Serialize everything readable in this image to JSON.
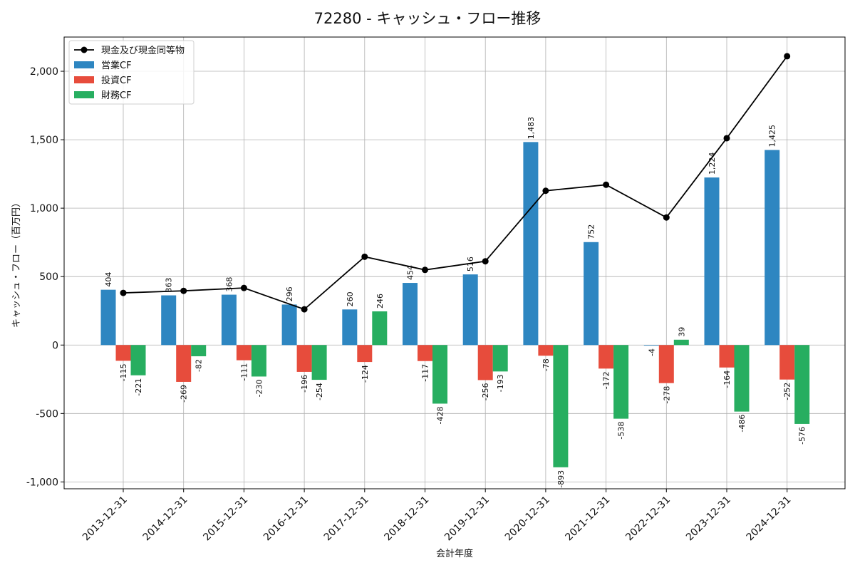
{
  "chart_data": {
    "type": "bar",
    "title": "72280 - キャッシュ・フロー推移",
    "xlabel": "会計年度",
    "ylabel": "キャッシュ・フロー（百万円）",
    "ylim": [
      -1050,
      2250
    ],
    "yticks": [
      -1000,
      -500,
      0,
      500,
      1000,
      1500,
      2000
    ],
    "ytick_labels": [
      "-1,000",
      "-500",
      "0",
      "500",
      "1,000",
      "1,500",
      "2,000"
    ],
    "grid": true,
    "legend_position": "top-left",
    "categories": [
      "2013-12-31",
      "2014-12-31",
      "2015-12-31",
      "2016-12-31",
      "2017-12-31",
      "2018-12-31",
      "2019-12-31",
      "2020-12-31",
      "2021-12-31",
      "2022-12-31",
      "2023-12-31",
      "2024-12-31"
    ],
    "series": [
      {
        "name": "営業CF",
        "kind": "bar",
        "color": "#2e86c1",
        "values": [
          404,
          363,
          368,
          296,
          260,
          454,
          516,
          1483,
          752,
          -4,
          1224,
          1425
        ],
        "labels": [
          "404",
          "363",
          "368",
          "296",
          "260",
          "454",
          "516",
          "1,483",
          "752",
          "-4",
          "1,224",
          "1,425"
        ]
      },
      {
        "name": "投資CF",
        "kind": "bar",
        "color": "#e74c3c",
        "values": [
          -115,
          -269,
          -111,
          -196,
          -124,
          -117,
          -256,
          -78,
          -172,
          -278,
          -164,
          -252
        ],
        "labels": [
          "-115",
          "-269",
          "-111",
          "-196",
          "-124",
          "-117",
          "-256",
          "-78",
          "-172",
          "-278",
          "-164",
          "-252"
        ]
      },
      {
        "name": "財務CF",
        "kind": "bar",
        "color": "#27ae60",
        "values": [
          -221,
          -82,
          -230,
          -254,
          246,
          -428,
          -193,
          -893,
          -538,
          39,
          -486,
          -576
        ],
        "labels": [
          "-221",
          "-82",
          "-230",
          "-254",
          "246",
          "-428",
          "-193",
          "-893",
          "-538",
          "39",
          "-486",
          "-576"
        ]
      },
      {
        "name": "現金及び現金同等物",
        "kind": "line",
        "color": "#000000",
        "values": [
          381,
          396,
          417,
          261,
          645,
          549,
          612,
          1127,
          1171,
          932,
          1511,
          2110
        ]
      }
    ]
  }
}
